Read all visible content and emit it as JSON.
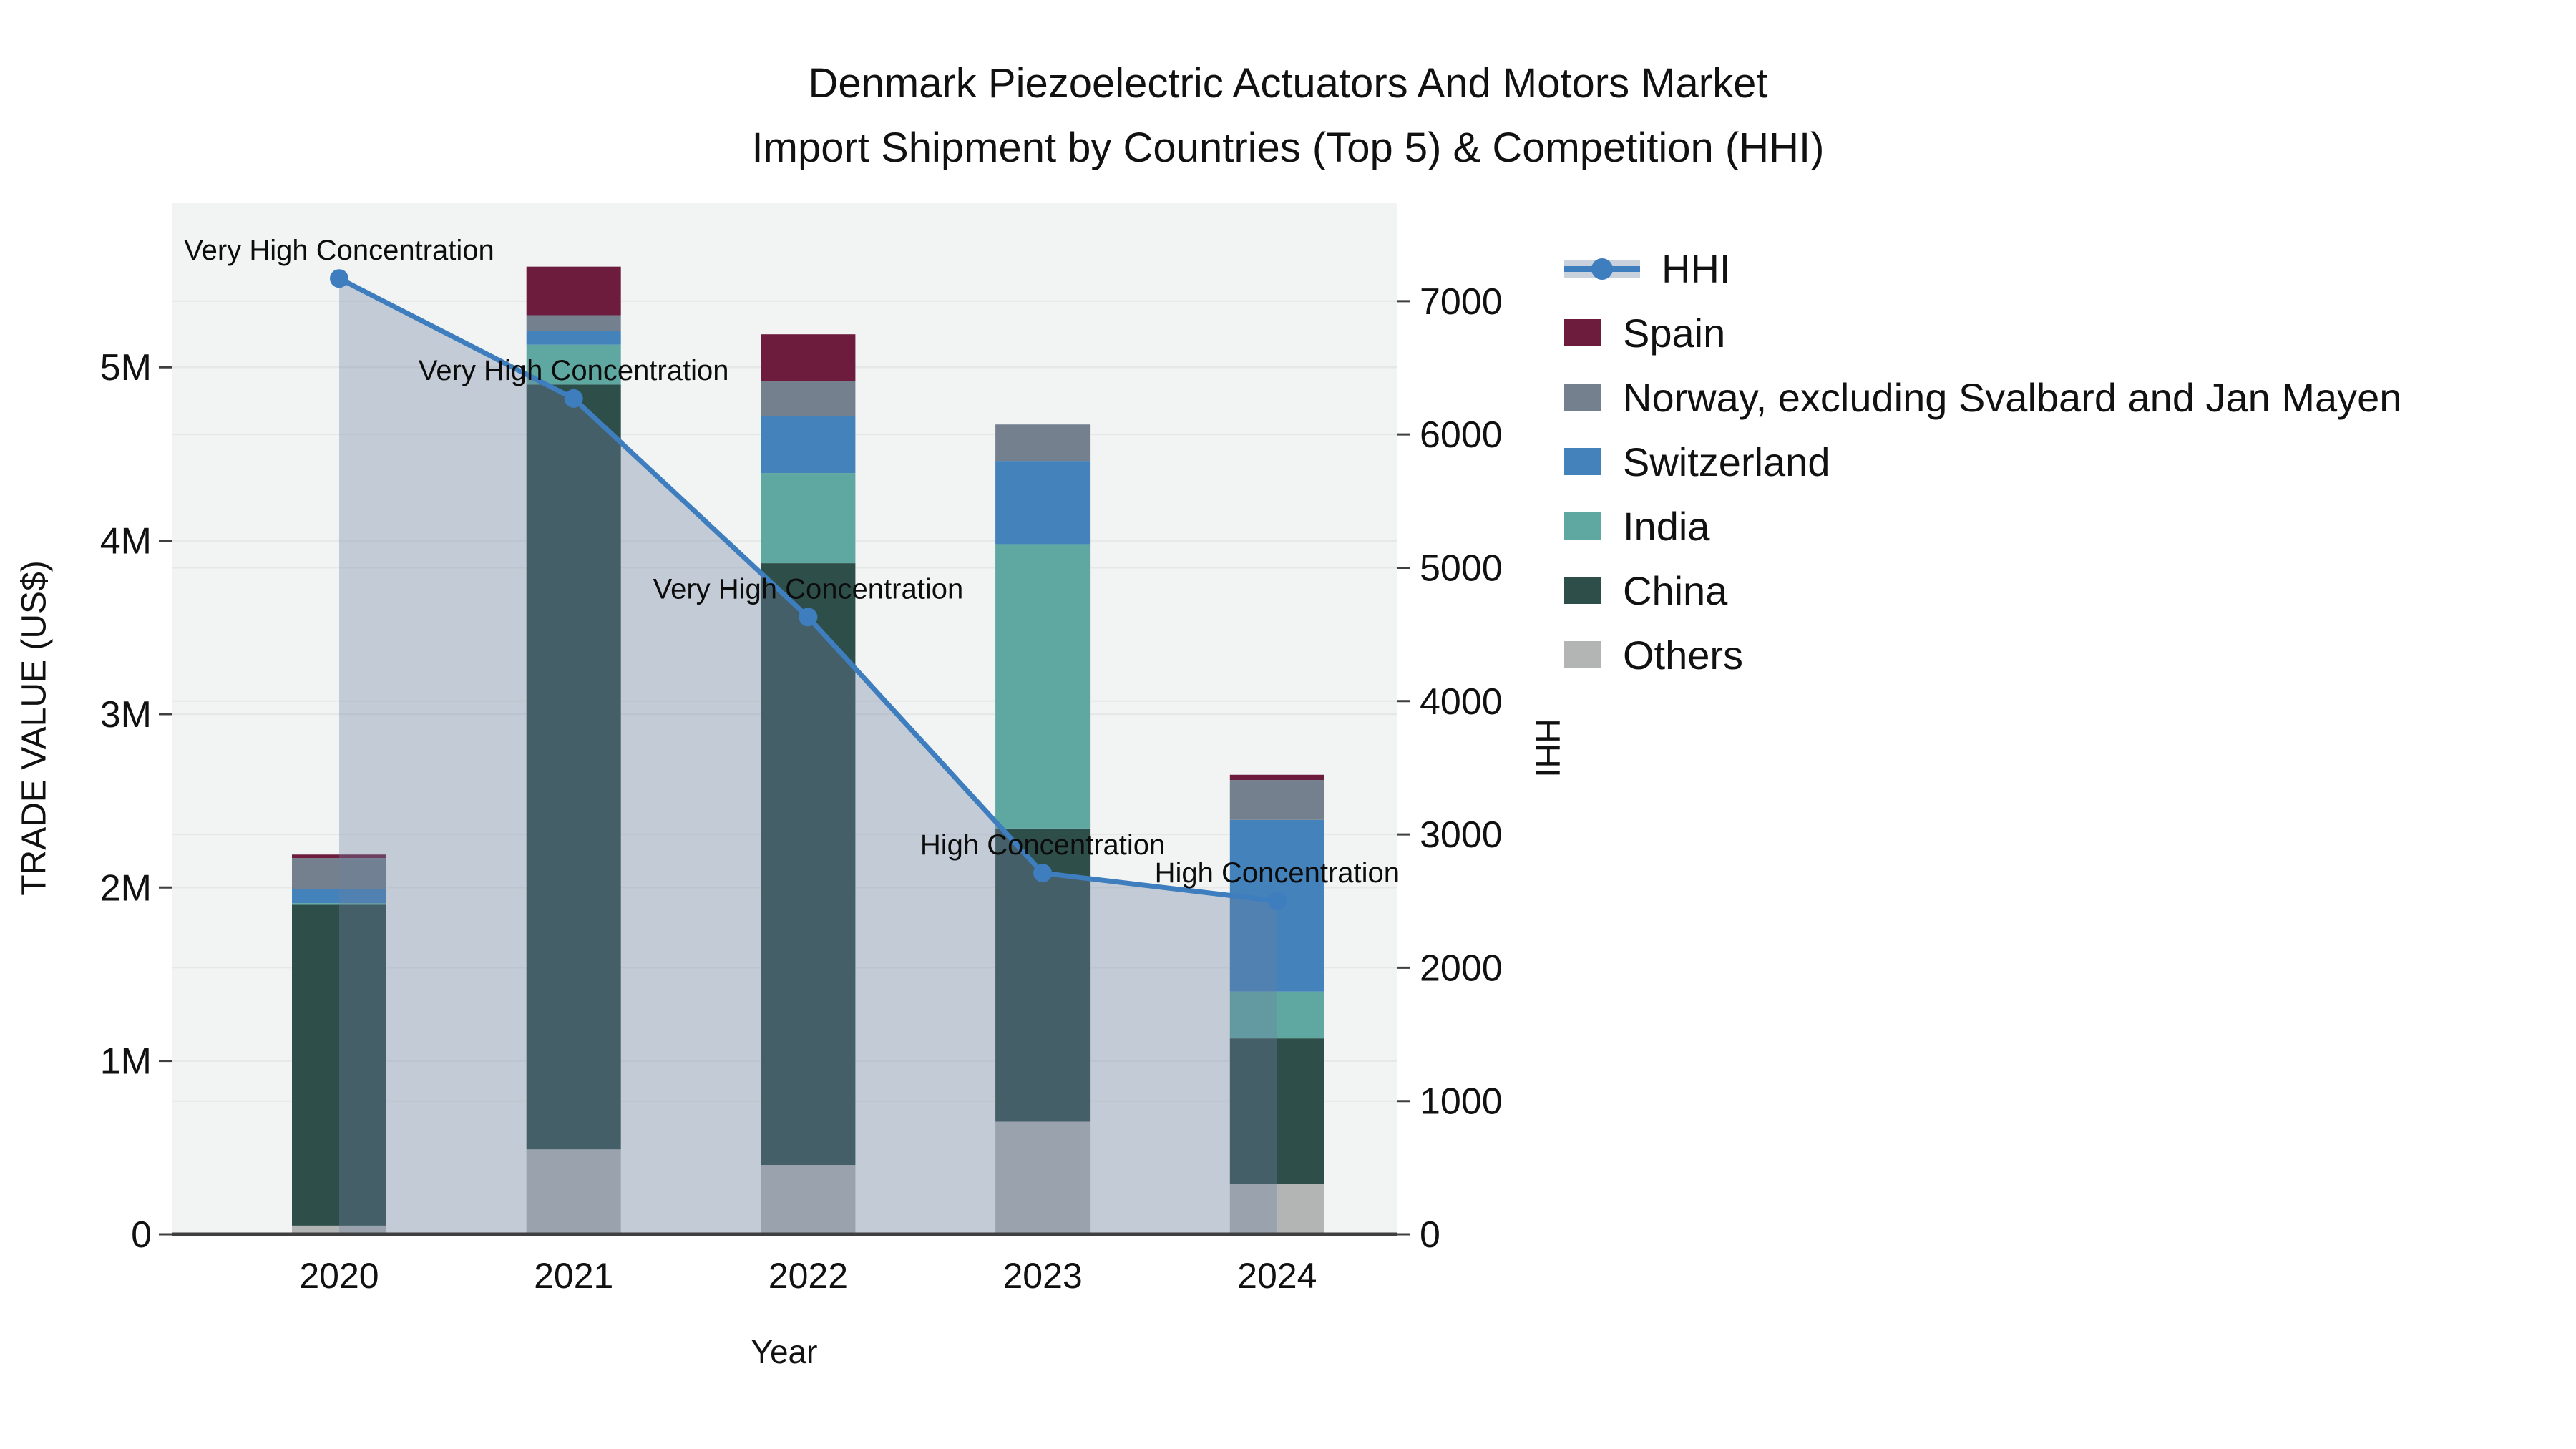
{
  "title": {
    "line1": "Denmark Piezoelectric Actuators And Motors Market",
    "line2": "Import Shipment by Countries (Top 5) & Competition (HHI)"
  },
  "axes": {
    "y_left": {
      "title": "TRADE VALUE (US$)",
      "ticks": [
        "0",
        "1M",
        "2M",
        "3M",
        "4M",
        "5M"
      ],
      "tick_values": [
        0,
        1,
        2,
        3,
        4,
        5
      ]
    },
    "y_right": {
      "title": "HHI",
      "ticks": [
        "0",
        "1000",
        "2000",
        "3000",
        "4000",
        "5000",
        "6000",
        "7000"
      ],
      "tick_values": [
        0,
        1000,
        2000,
        3000,
        4000,
        5000,
        6000,
        7000
      ]
    },
    "x": {
      "title": "Year",
      "ticks": [
        "2020",
        "2021",
        "2022",
        "2023",
        "2024"
      ]
    }
  },
  "legend": {
    "items": [
      {
        "label": "HHI",
        "type": "line",
        "color": "#3e7ebe"
      },
      {
        "label": "Spain",
        "type": "swatch",
        "color": "#6e1c3e"
      },
      {
        "label": "Norway, excluding Svalbard and Jan Mayen",
        "type": "swatch",
        "color": "#75808e"
      },
      {
        "label": "Switzerland",
        "type": "swatch",
        "color": "#4382ba"
      },
      {
        "label": "India",
        "type": "swatch",
        "color": "#5fa7a1"
      },
      {
        "label": "China",
        "type": "swatch",
        "color": "#2e4e4a"
      },
      {
        "label": "Others",
        "type": "swatch",
        "color": "#b3b5b4"
      }
    ]
  },
  "colors": {
    "hhi_line": "#3e7ebe",
    "hhi_area_fill": "rgba(108,130,160,0.35)",
    "legend_band": "#c9d2dc",
    "plot_bg": "#f2f3f3",
    "grid": "#e6e8e8",
    "axis_line": "#3f3f3f",
    "tick_text": "#111111",
    "annotation_text": "#0c0c0c"
  },
  "chart_data": {
    "type": "combo: stacked-bar (left axis) + line (right axis)",
    "title": "Denmark Piezoelectric Actuators And Motors Market Import Shipment by Countries (Top 5) & Competition (HHI)",
    "categories": [
      "2020",
      "2021",
      "2022",
      "2023",
      "2024"
    ],
    "xlabel": "Year",
    "ylabel_left": "TRADE VALUE (US$)",
    "ylabel_right": "HHI",
    "bar_unit": "million US$",
    "ylim_left": [
      0,
      5.95
    ],
    "ylim_right": [
      0,
      7740
    ],
    "grid": true,
    "legend_position": "right",
    "series": [
      {
        "name": "Others",
        "color": "#b3b5b4",
        "values": [
          0.05,
          0.49,
          0.4,
          0.65,
          0.29
        ]
      },
      {
        "name": "China",
        "color": "#2e4e4a",
        "values": [
          1.85,
          4.41,
          3.47,
          1.69,
          0.84
        ]
      },
      {
        "name": "India",
        "color": "#5fa7a1",
        "values": [
          0.01,
          0.23,
          0.52,
          1.64,
          0.27
        ]
      },
      {
        "name": "Switzerland",
        "color": "#4382ba",
        "values": [
          0.08,
          0.08,
          0.33,
          0.48,
          0.99
        ]
      },
      {
        "name": "Norway, excluding Svalbard and Jan Mayen",
        "color": "#75808e",
        "values": [
          0.18,
          0.09,
          0.2,
          0.21,
          0.23
        ]
      },
      {
        "name": "Spain",
        "color": "#6e1c3e",
        "values": [
          0.02,
          0.28,
          0.27,
          0.0,
          0.03
        ]
      }
    ],
    "bar_totals": [
      2.19,
      5.58,
      5.19,
      4.67,
      2.65
    ],
    "line": {
      "name": "HHI",
      "axis": "right",
      "values": [
        7170,
        6270,
        4630,
        2710,
        2500
      ],
      "area_fill": true
    },
    "annotations": [
      {
        "category": "2020",
        "text": "Very High Concentration"
      },
      {
        "category": "2021",
        "text": "Very High Concentration"
      },
      {
        "category": "2022",
        "text": "Very High Concentration"
      },
      {
        "category": "2023",
        "text": "High Concentration"
      },
      {
        "category": "2024",
        "text": "High Concentration"
      }
    ]
  }
}
